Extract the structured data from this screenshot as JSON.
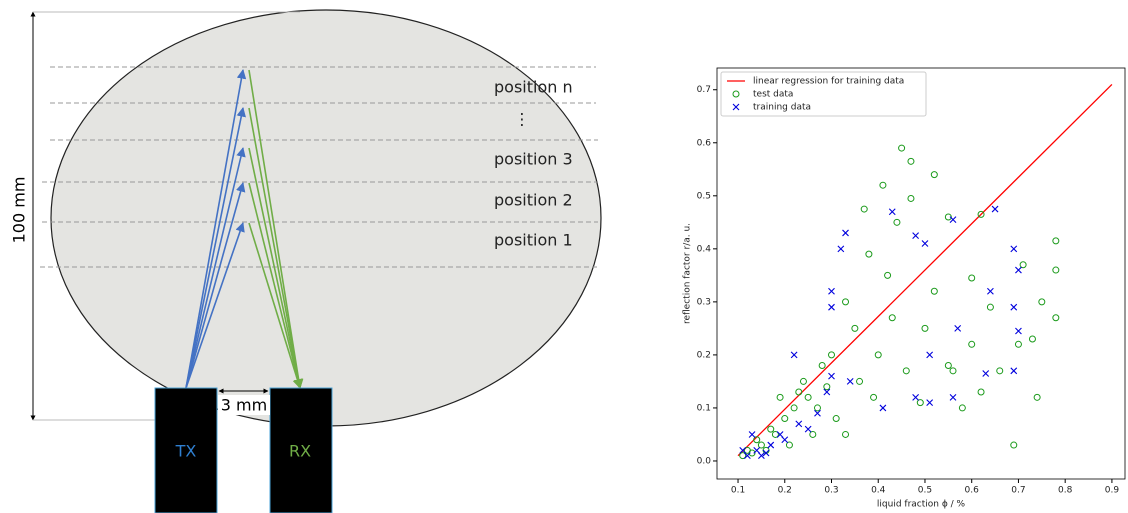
{
  "diagram": {
    "dimension_label": "100 mm",
    "gap_label": "3 mm",
    "tx_label": "TX",
    "rx_label": "RX",
    "positions": [
      "position n",
      "⋮",
      "position 3",
      "position 2",
      "position 1"
    ]
  },
  "chart_data": {
    "type": "scatter",
    "xlabel": "liquid fraction ϕ / %",
    "ylabel": "reflection factor r/a. u.",
    "xlim": [
      0.055,
      0.928
    ],
    "ylim": [
      -0.034,
      0.741
    ],
    "xticks": [
      0.1,
      0.2,
      0.3,
      0.4,
      0.5,
      0.6,
      0.7,
      0.8,
      0.9
    ],
    "yticks": [
      {
        "value": 0,
        "label": "0.0"
      },
      0.1,
      0.2,
      0.3,
      0.4,
      0.5,
      0.6,
      0.7
    ],
    "legend": "upper left",
    "series": [
      {
        "name": "linear regression for training data",
        "color": "#ff0000",
        "marker": "line",
        "x": [
          0.1,
          0.9
        ],
        "values": [
          0.01,
          0.71
        ]
      },
      {
        "name": "test data",
        "color": "#1a9a1a",
        "marker": "circle",
        "x": [
          0.45,
          0.47,
          0.52,
          0.41,
          0.47,
          0.37,
          0.62,
          0.44,
          0.55,
          0.38,
          0.42,
          0.6,
          0.78,
          0.71,
          0.78,
          0.75,
          0.78,
          0.69,
          0.74,
          0.5,
          0.52,
          0.64,
          0.33,
          0.35,
          0.3,
          0.28,
          0.25,
          0.22,
          0.2,
          0.18,
          0.15,
          0.12,
          0.14,
          0.17,
          0.24,
          0.27,
          0.31,
          0.36,
          0.4,
          0.46,
          0.55,
          0.58,
          0.62,
          0.66,
          0.7,
          0.49,
          0.43,
          0.39,
          0.33,
          0.26,
          0.21,
          0.11,
          0.13,
          0.16,
          0.19,
          0.23,
          0.29,
          0.6,
          0.56,
          0.73
        ],
        "values": [
          0.59,
          0.565,
          0.54,
          0.52,
          0.495,
          0.475,
          0.465,
          0.45,
          0.46,
          0.39,
          0.35,
          0.345,
          0.415,
          0.37,
          0.36,
          0.3,
          0.27,
          0.03,
          0.12,
          0.25,
          0.32,
          0.29,
          0.3,
          0.25,
          0.2,
          0.18,
          0.12,
          0.1,
          0.08,
          0.05,
          0.03,
          0.02,
          0.04,
          0.06,
          0.15,
          0.1,
          0.08,
          0.15,
          0.2,
          0.17,
          0.18,
          0.1,
          0.13,
          0.17,
          0.22,
          0.11,
          0.27,
          0.12,
          0.05,
          0.05,
          0.03,
          0.01,
          0.015,
          0.02,
          0.12,
          0.13,
          0.14,
          0.22,
          0.17,
          0.23
        ]
      },
      {
        "name": "training data",
        "color": "#0000dd",
        "marker": "x",
        "x": [
          0.65,
          0.43,
          0.56,
          0.48,
          0.33,
          0.5,
          0.69,
          0.32,
          0.7,
          0.3,
          0.3,
          0.64,
          0.69,
          0.57,
          0.7,
          0.22,
          0.3,
          0.29,
          0.51,
          0.51,
          0.56,
          0.63,
          0.69,
          0.48,
          0.41,
          0.34,
          0.27,
          0.25,
          0.2,
          0.17,
          0.14,
          0.12,
          0.11,
          0.16,
          0.19,
          0.23,
          0.13,
          0.15
        ],
        "values": [
          0.475,
          0.47,
          0.455,
          0.425,
          0.43,
          0.41,
          0.4,
          0.4,
          0.36,
          0.32,
          0.29,
          0.32,
          0.29,
          0.25,
          0.245,
          0.2,
          0.16,
          0.13,
          0.2,
          0.11,
          0.12,
          0.165,
          0.17,
          0.12,
          0.1,
          0.15,
          0.09,
          0.06,
          0.04,
          0.03,
          0.02,
          0.01,
          0.02,
          0.015,
          0.05,
          0.07,
          0.05,
          0.01
        ]
      }
    ]
  }
}
